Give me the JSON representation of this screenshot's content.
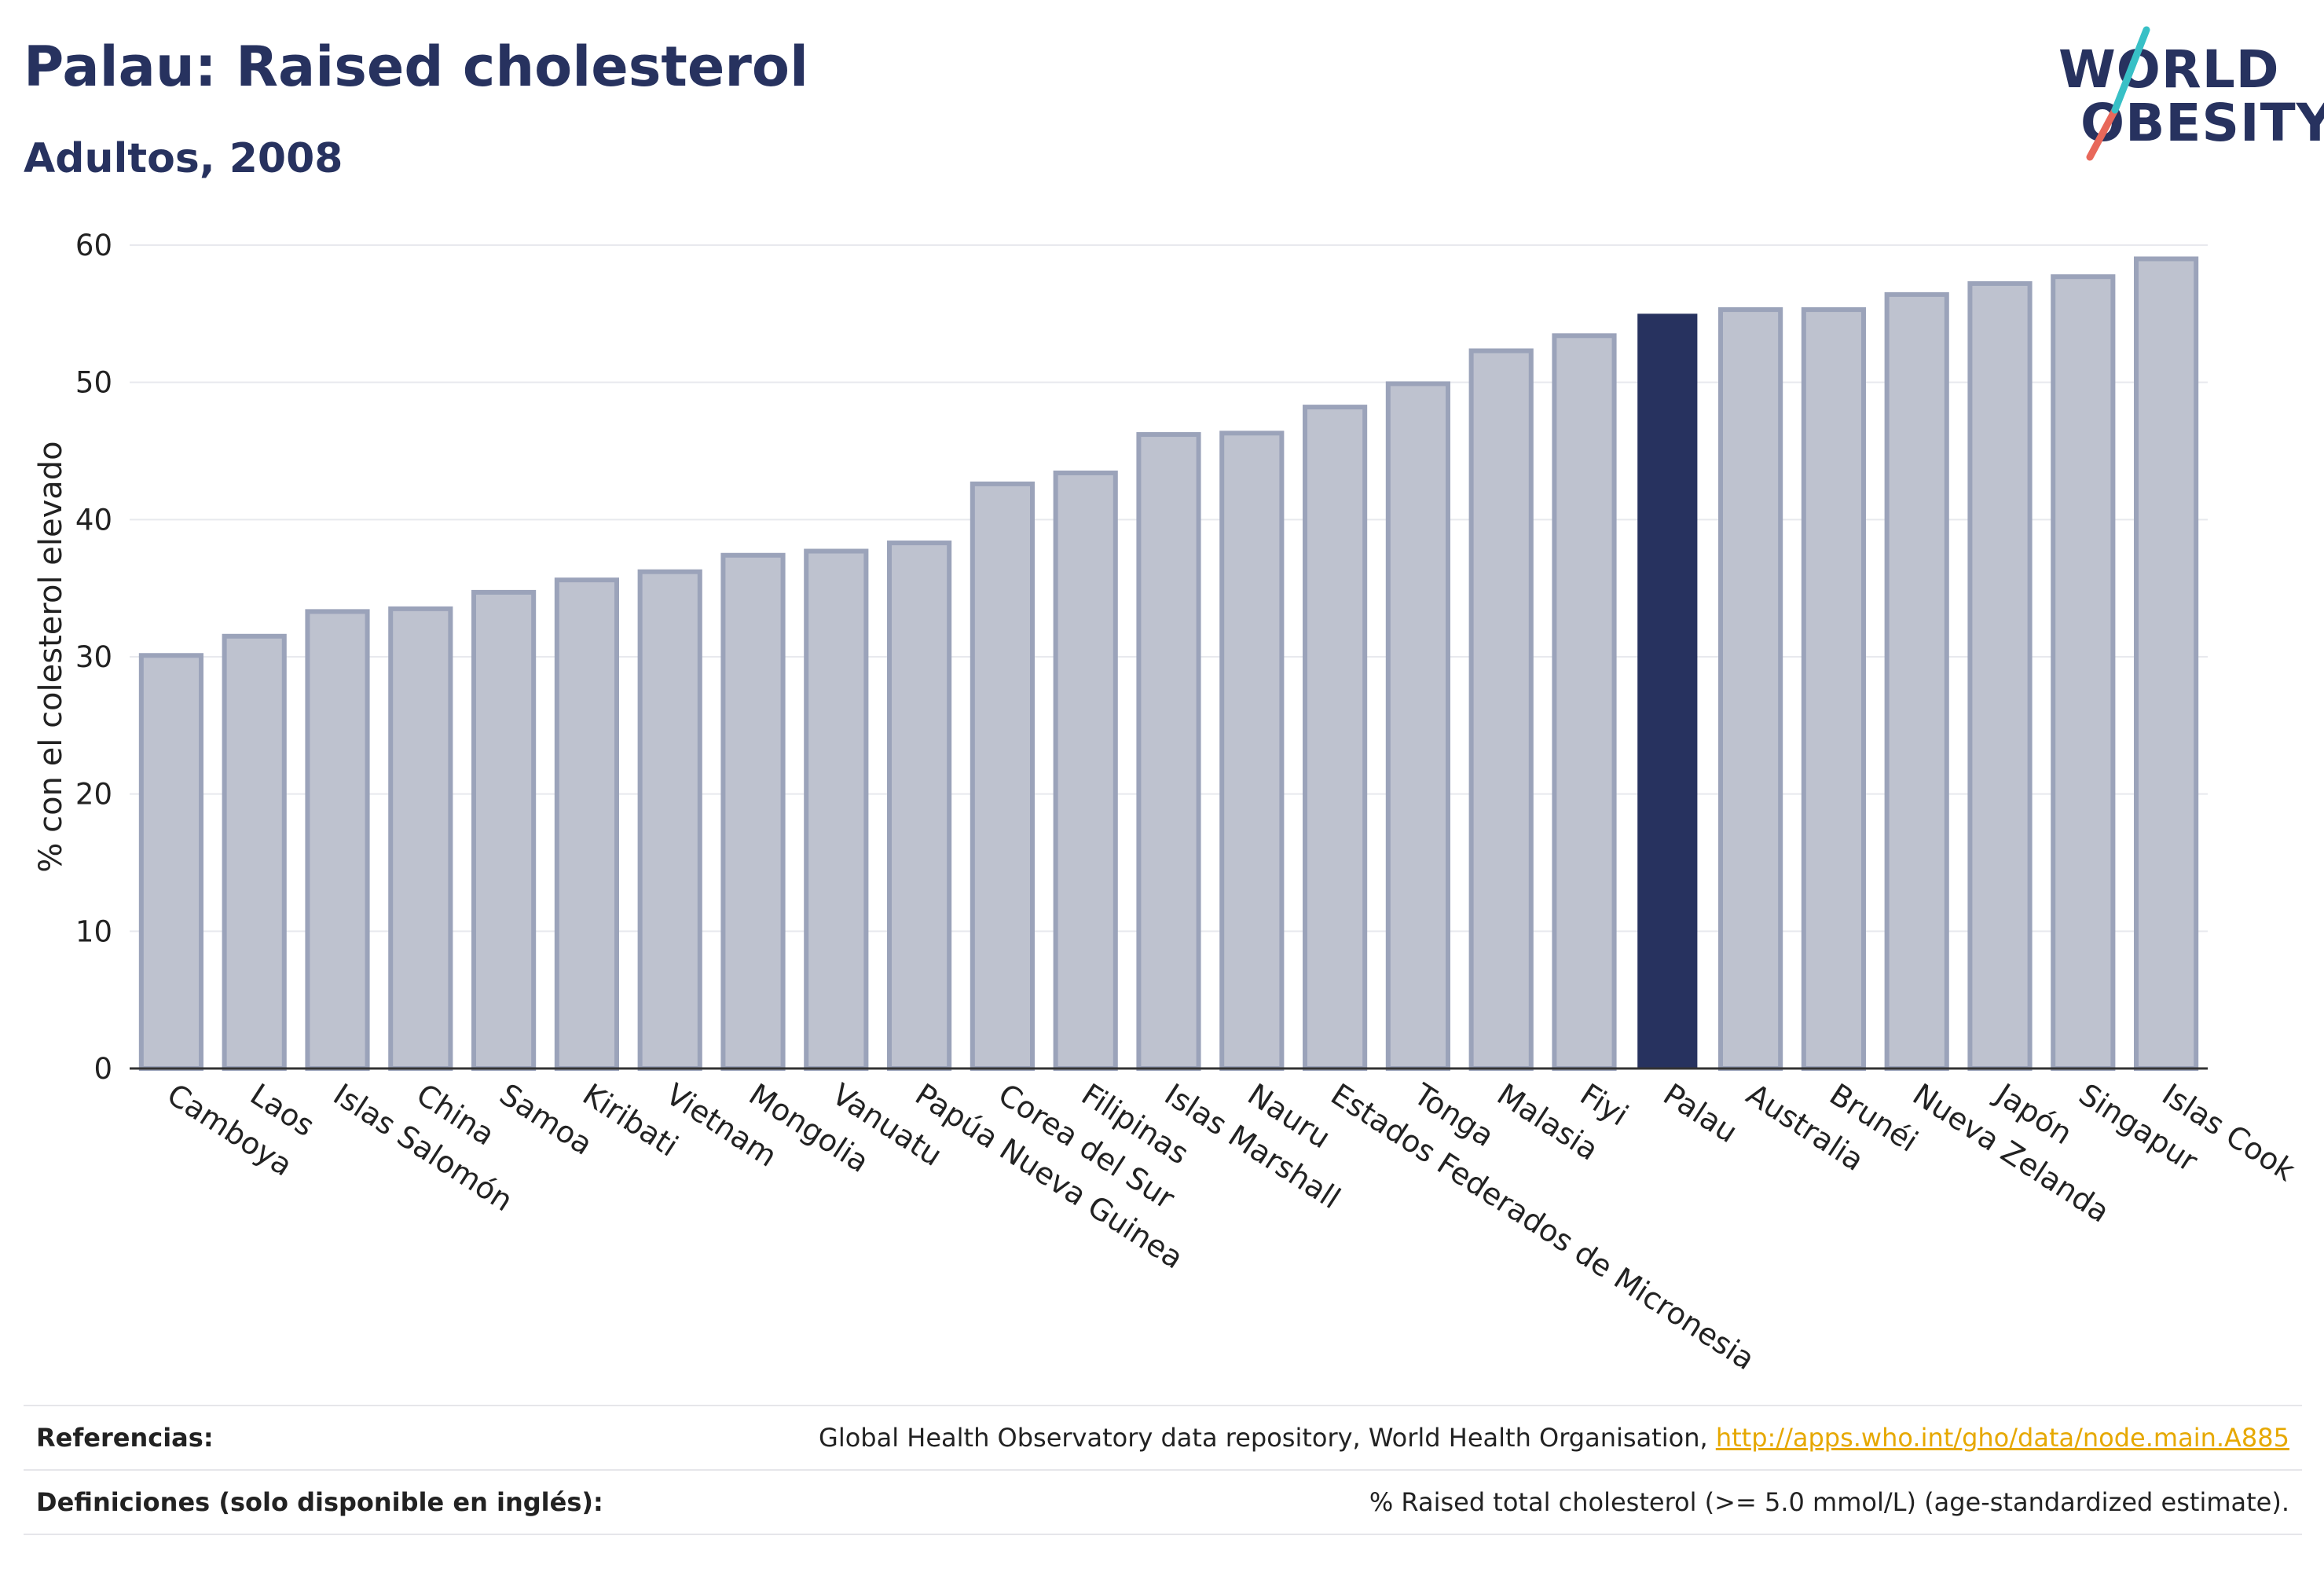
{
  "header": {
    "title": "Palau: Raised cholesterol",
    "subtitle": "Adultos, 2008"
  },
  "logo": {
    "line1": "WORLD",
    "line2": "OBESITY"
  },
  "colors": {
    "bar": "#bec2cf",
    "bar_edge": "#9ba3ba",
    "highlight": "#27325f",
    "grid": "#e8e9ee",
    "text": "#222222",
    "logo_teal": "#38c0c6",
    "logo_red": "#e8685a"
  },
  "chart_data": {
    "type": "bar",
    "ylabel": "% con el colesterol elevado",
    "xlabel": "",
    "ylim": [
      0,
      60
    ],
    "yticks": [
      0,
      10,
      20,
      30,
      40,
      50,
      60
    ],
    "grid": true,
    "highlight": "Palau",
    "categories": [
      "Camboya",
      "Laos",
      "Islas Salomón",
      "China",
      "Samoa",
      "Kiribati",
      "Vietnam",
      "Mongolia",
      "Vanuatu",
      "Papúa Nueva Guinea",
      "Corea del Sur",
      "Filipinas",
      "Islas Marshall",
      "Nauru",
      "Estados Federados de Micronesia",
      "Tonga",
      "Malasia",
      "Fiyi",
      "Palau",
      "Australia",
      "Brunéi",
      "Nueva Zelanda",
      "Japón",
      "Singapur",
      "Islas Cook"
    ],
    "values": [
      30.1,
      31.5,
      33.3,
      33.5,
      34.7,
      35.6,
      36.2,
      37.4,
      37.7,
      38.3,
      42.6,
      43.4,
      46.2,
      46.3,
      48.2,
      49.9,
      52.3,
      53.4,
      55.0,
      55.3,
      55.3,
      56.4,
      57.2,
      57.7,
      59.0
    ]
  },
  "footer": {
    "references_label": "Referencias:",
    "references_text": "Global Health Observatory data repository, World Health Organisation,",
    "references_link": "http://apps.who.int/gho/data/node.main.A885",
    "definitions_label": "Definiciones (solo disponible en inglés):",
    "definitions_text": "% Raised total cholesterol (>= 5.0 mmol/L) (age-standardized estimate)."
  }
}
